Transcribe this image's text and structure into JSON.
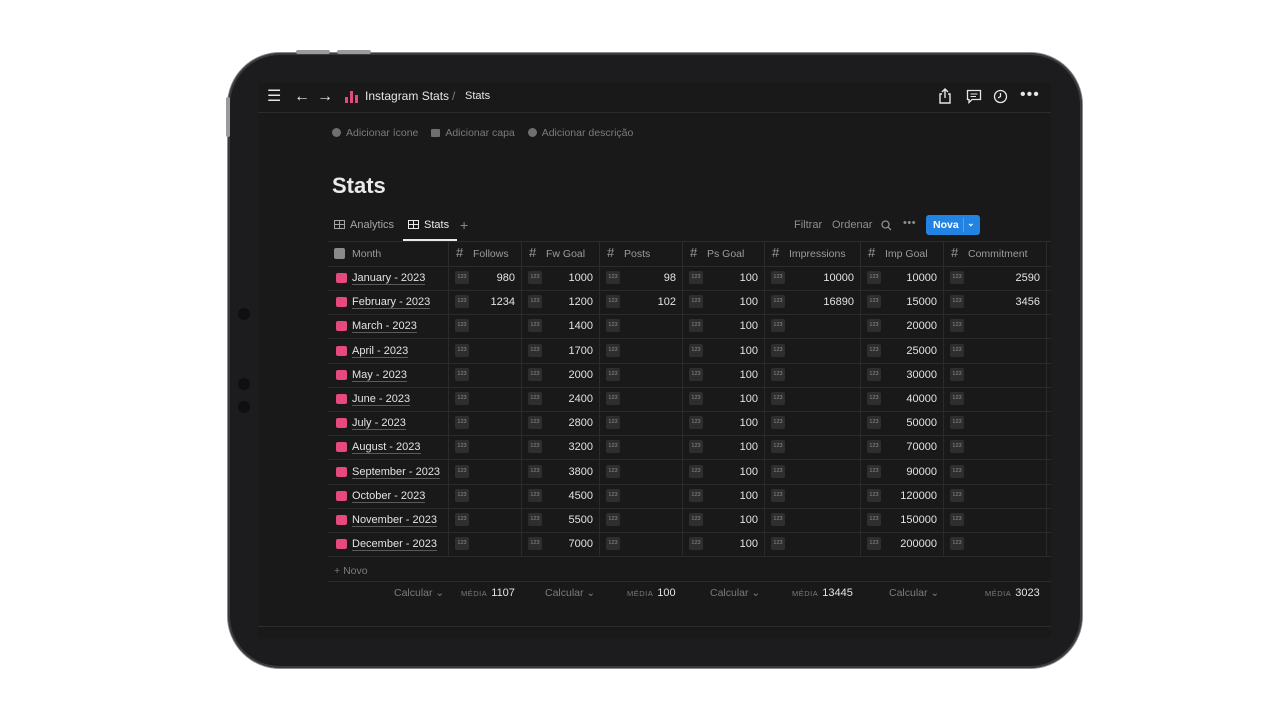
{
  "topbar": {
    "app_title": "Instagram Stats",
    "separator": "/",
    "page_title": "Stats"
  },
  "page": {
    "add_icon": "Adicionar ícone",
    "add_cover": "Adicionar capa",
    "add_description": "Adicionar descrição",
    "title": "Stats"
  },
  "views": {
    "tabs": [
      {
        "label": "Analytics",
        "active": false
      },
      {
        "label": "Stats",
        "active": true
      }
    ],
    "filter": "Filtrar",
    "sort": "Ordenar",
    "new_button": "Nova"
  },
  "table": {
    "columns": [
      "Month",
      "Follows",
      "Fw Goal",
      "Posts",
      "Ps Goal",
      "Impressions",
      "Imp Goal",
      "Commitment"
    ],
    "number_badge": "123",
    "rows": [
      {
        "month": "January - 2023",
        "follows": "980",
        "fw_goal": "1000",
        "posts": "98",
        "ps_goal": "100",
        "impressions": "10000",
        "imp_goal": "10000",
        "commitment": "2590"
      },
      {
        "month": "February - 2023",
        "follows": "1234",
        "fw_goal": "1200",
        "posts": "102",
        "ps_goal": "100",
        "impressions": "16890",
        "imp_goal": "15000",
        "commitment": "3456"
      },
      {
        "month": "March - 2023",
        "follows": "",
        "fw_goal": "1400",
        "posts": "",
        "ps_goal": "100",
        "impressions": "",
        "imp_goal": "20000",
        "commitment": ""
      },
      {
        "month": "April - 2023",
        "follows": "",
        "fw_goal": "1700",
        "posts": "",
        "ps_goal": "100",
        "impressions": "",
        "imp_goal": "25000",
        "commitment": ""
      },
      {
        "month": "May - 2023",
        "follows": "",
        "fw_goal": "2000",
        "posts": "",
        "ps_goal": "100",
        "impressions": "",
        "imp_goal": "30000",
        "commitment": ""
      },
      {
        "month": "June - 2023",
        "follows": "",
        "fw_goal": "2400",
        "posts": "",
        "ps_goal": "100",
        "impressions": "",
        "imp_goal": "40000",
        "commitment": ""
      },
      {
        "month": "July - 2023",
        "follows": "",
        "fw_goal": "2800",
        "posts": "",
        "ps_goal": "100",
        "impressions": "",
        "imp_goal": "50000",
        "commitment": ""
      },
      {
        "month": "August - 2023",
        "follows": "",
        "fw_goal": "3200",
        "posts": "",
        "ps_goal": "100",
        "impressions": "",
        "imp_goal": "70000",
        "commitment": ""
      },
      {
        "month": "September - 2023",
        "follows": "",
        "fw_goal": "3800",
        "posts": "",
        "ps_goal": "100",
        "impressions": "",
        "imp_goal": "90000",
        "commitment": ""
      },
      {
        "month": "October - 2023",
        "follows": "",
        "fw_goal": "4500",
        "posts": "",
        "ps_goal": "100",
        "impressions": "",
        "imp_goal": "120000",
        "commitment": ""
      },
      {
        "month": "November - 2023",
        "follows": "",
        "fw_goal": "5500",
        "posts": "",
        "ps_goal": "100",
        "impressions": "",
        "imp_goal": "150000",
        "commitment": ""
      },
      {
        "month": "December - 2023",
        "follows": "",
        "fw_goal": "7000",
        "posts": "",
        "ps_goal": "100",
        "impressions": "",
        "imp_goal": "200000",
        "commitment": ""
      }
    ],
    "new_row": "Novo",
    "footer": {
      "calc_label": "Calcular",
      "avg_label": "MÉDIA",
      "follows_avg": "1107",
      "posts_avg": "100",
      "impressions_avg": "13445",
      "commitment_avg": "3023"
    }
  },
  "colors": {
    "accent": "#2383e2",
    "brand_pink": "#e64980",
    "background": "#191919"
  },
  "icons": [
    "menu-icon",
    "back-arrow-icon",
    "forward-arrow-icon",
    "bar-chart-icon",
    "share-icon",
    "comment-icon",
    "history-icon",
    "more-icon",
    "search-icon",
    "table-icon",
    "month-icon",
    "number-icon"
  ]
}
